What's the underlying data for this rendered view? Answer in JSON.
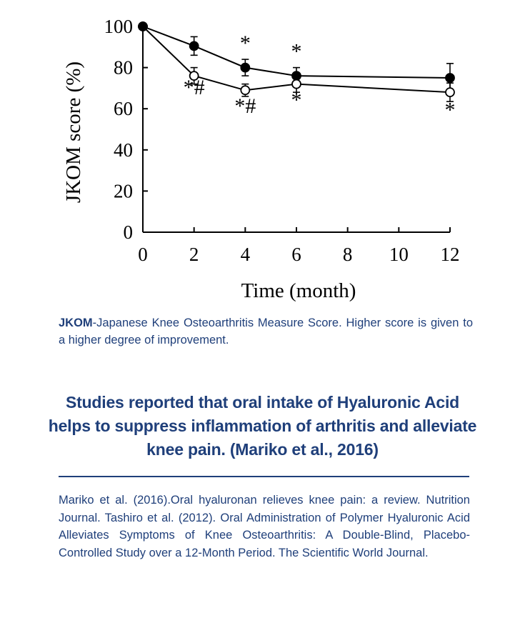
{
  "chart_data": {
    "type": "line",
    "ylabel": "JKOM score (%)",
    "xlabel": "Time (month)",
    "xlim": [
      0,
      12
    ],
    "ylim": [
      0,
      100
    ],
    "x_ticks": [
      0,
      2,
      4,
      6,
      8,
      10,
      12
    ],
    "y_ticks": [
      0,
      20,
      40,
      60,
      80,
      100
    ],
    "grid": false,
    "series": [
      {
        "marker": "filled-circle",
        "color": "#000000",
        "x": [
          0,
          2,
          4,
          6,
          12
        ],
        "y": [
          100,
          90.5,
          80,
          76,
          75
        ],
        "err": [
          0,
          4.5,
          4,
          4,
          7
        ]
      },
      {
        "marker": "open-circle",
        "color": "#000000",
        "x": [
          0,
          2,
          4,
          6,
          12
        ],
        "y": [
          100,
          76,
          69,
          72,
          68
        ],
        "err": [
          0,
          4,
          3,
          4,
          4.5
        ]
      }
    ],
    "annotations": [
      {
        "text": "*#",
        "x": 2,
        "y": 67
      },
      {
        "text": "*",
        "x": 4,
        "y": 88.5
      },
      {
        "text": "*#",
        "x": 4,
        "y": 58
      },
      {
        "text": "*",
        "x": 6,
        "y": 84.5
      },
      {
        "text": "*",
        "x": 6,
        "y": 61
      },
      {
        "text": "*",
        "x": 12,
        "y": 56
      }
    ]
  },
  "caption": {
    "term": "JKOM",
    "text": "-Japanese Knee Osteoarthritis Measure Score. Higher score is given to a higher degree of improvement."
  },
  "headline": "Studies reported that oral intake of Hyaluronic Acid helps to suppress inflammation of arthritis and alleviate knee pain. (Mariko et al., 2016)",
  "references": "Mariko et al. (2016).Oral hyaluronan relieves knee pain: a review. Nutrition Journal. Tashiro et al. (2012). Oral Administration of Polymer Hyaluronic Acid Alleviates Symptoms of Knee Osteoarthritis: A Double-Blind, Placebo-Controlled Study over a 12-Month Period. The Scientific World Journal."
}
